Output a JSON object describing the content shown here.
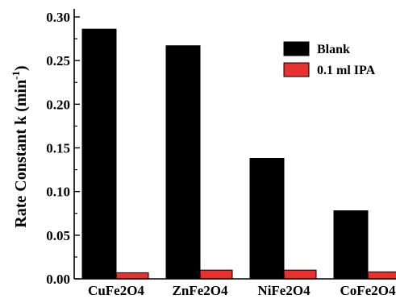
{
  "chart_data": {
    "type": "bar",
    "categories": [
      "CuFe2O4",
      "ZnFe2O4",
      "NiFe2O4",
      "CoFe2O4"
    ],
    "series": [
      {
        "name": "Blank",
        "color": "#000000",
        "values": [
          0.286,
          0.267,
          0.138,
          0.078
        ]
      },
      {
        "name": "0.1 ml IPA",
        "color": "#e8302c",
        "values": [
          0.007,
          0.01,
          0.01,
          0.008
        ]
      }
    ],
    "ylabel_main": "Rate Constant k (min",
    "ylabel_sup": "-1",
    "ylabel_close": ")",
    "yticks": [
      "0.00",
      "0.05",
      "0.10",
      "0.15",
      "0.20",
      "0.25",
      "0.30"
    ],
    "ylim": [
      0,
      0.3
    ],
    "legend_position": "top-right",
    "grid": false
  }
}
